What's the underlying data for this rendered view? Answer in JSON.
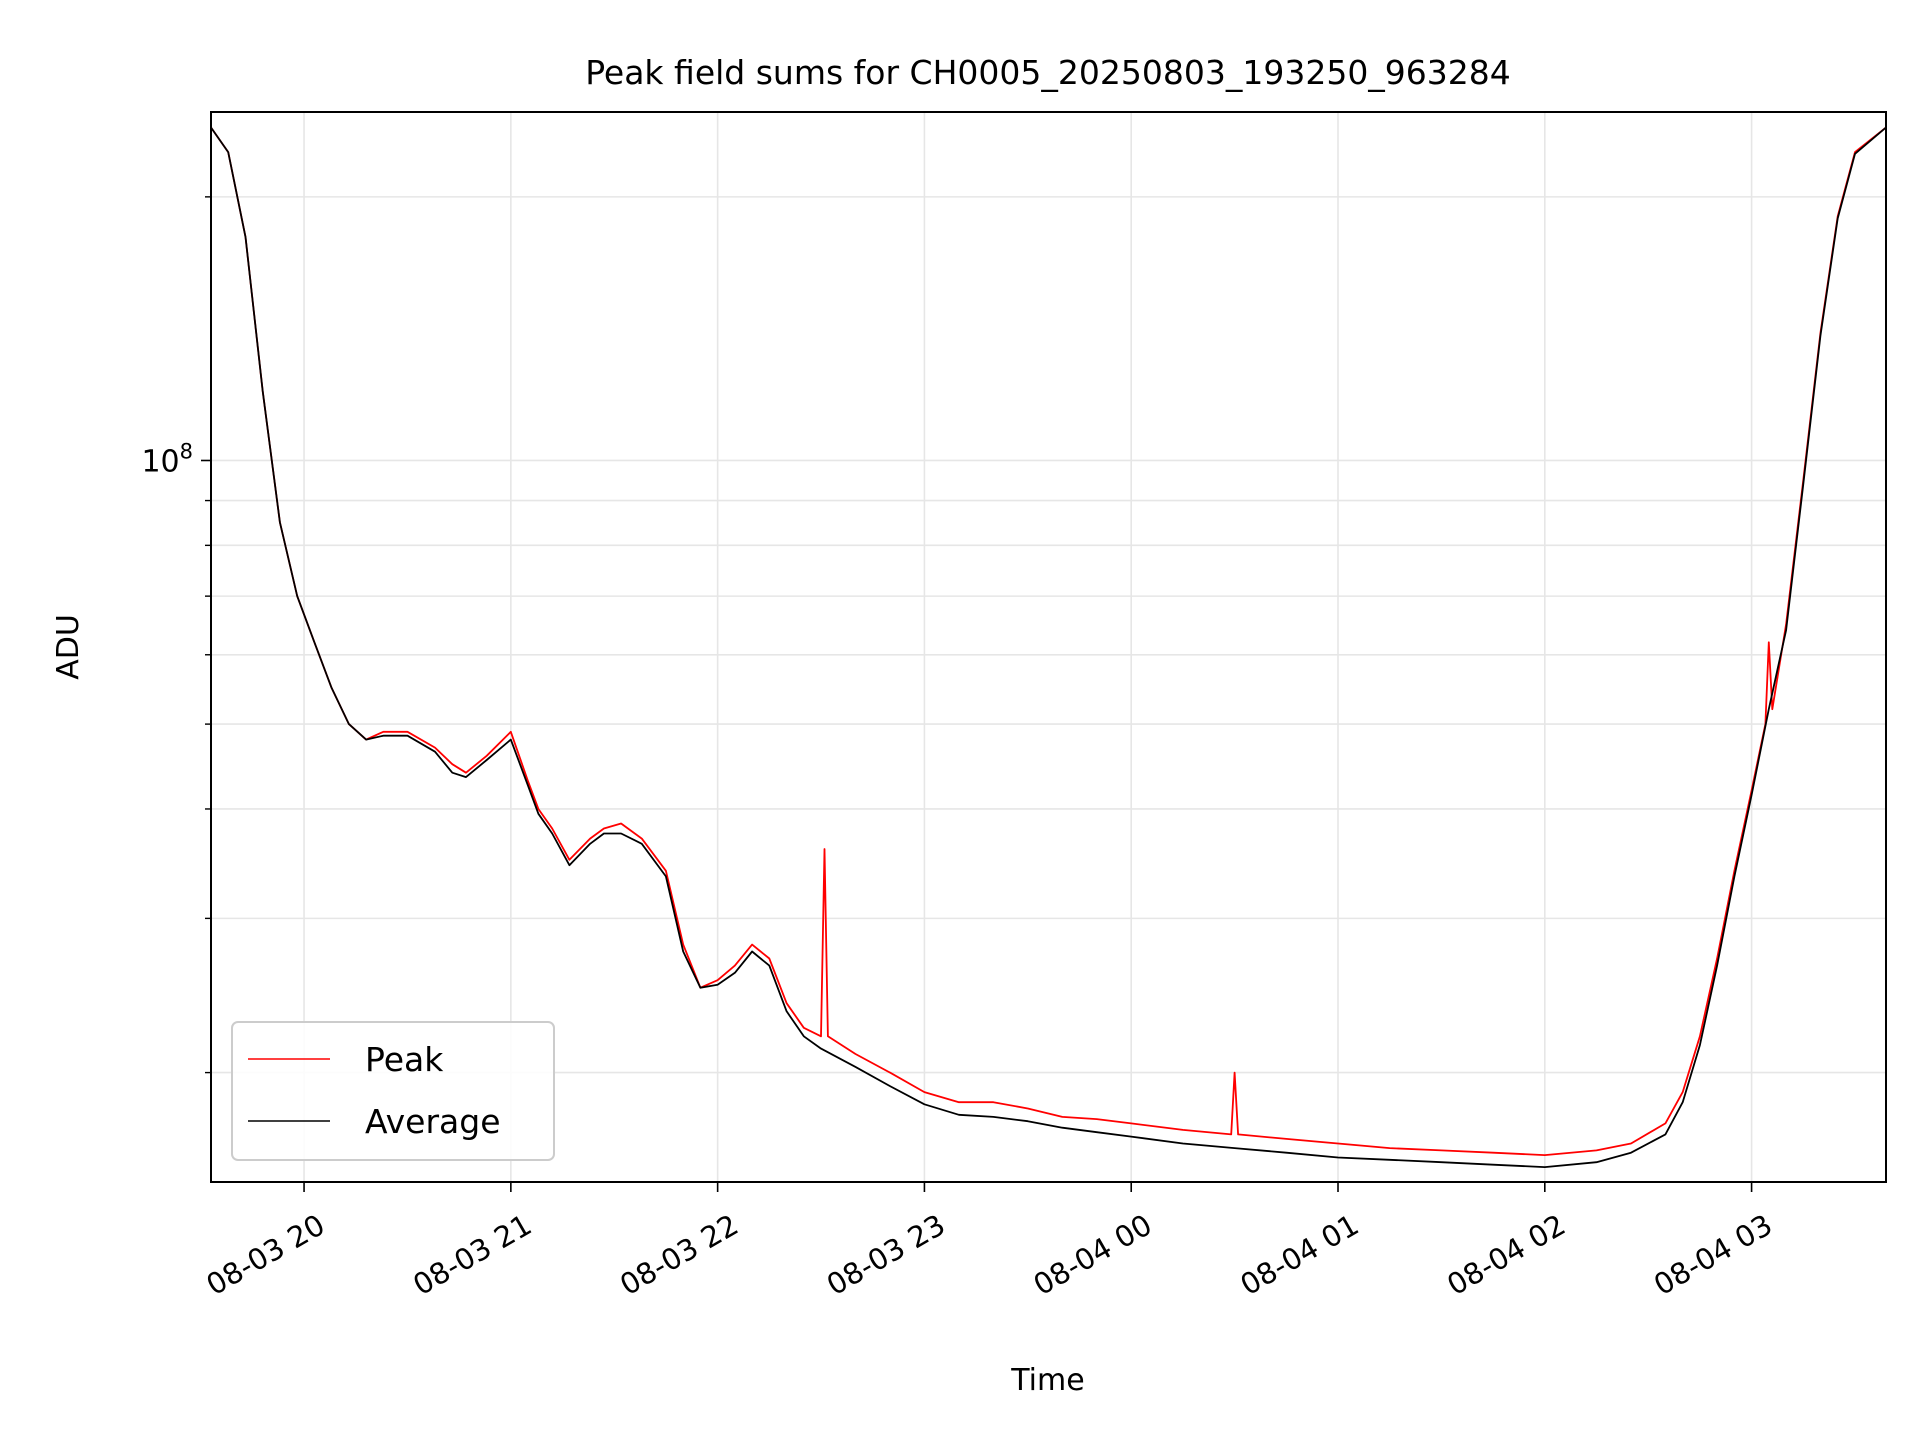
{
  "chart_data": {
    "type": "line",
    "title": "Peak field sums for CH0005_20250803_193250_963284",
    "xlabel": "Time",
    "ylabel": "ADU",
    "xlim": [
      "2025-08-03 19:33",
      "2025-08-04 03:39"
    ],
    "ylim": [
      15000000,
      250000000
    ],
    "yscale": "log",
    "grid": true,
    "legend_position": "lower-left",
    "x_ticks": [
      "08-03 20",
      "08-03 21",
      "08-03 22",
      "08-03 23",
      "08-04 00",
      "08-04 01",
      "08-04 02",
      "08-04 03"
    ],
    "x_tick_times": [
      "2025-08-03 20:00",
      "2025-08-03 21:00",
      "2025-08-03 22:00",
      "2025-08-03 23:00",
      "2025-08-04 00:00",
      "2025-08-04 01:00",
      "2025-08-04 02:00",
      "2025-08-04 03:00"
    ],
    "y_tick_labels": [
      {
        "value": 100000000,
        "base": "10",
        "exp": "8"
      }
    ],
    "y_minor_ticks": [
      20000000,
      30000000,
      40000000,
      50000000,
      60000000,
      70000000,
      80000000,
      90000000,
      200000000
    ],
    "series": [
      {
        "name": "Peak",
        "color": "#ff0000",
        "x": [
          "2025-08-03 19:33",
          "2025-08-03 19:38",
          "2025-08-03 19:43",
          "2025-08-03 19:48",
          "2025-08-03 19:53",
          "2025-08-03 19:58",
          "2025-08-03 20:03",
          "2025-08-03 20:08",
          "2025-08-03 20:13",
          "2025-08-03 20:18",
          "2025-08-03 20:23",
          "2025-08-03 20:30",
          "2025-08-03 20:38",
          "2025-08-03 20:43",
          "2025-08-03 20:47",
          "2025-08-03 20:53",
          "2025-08-03 21:00",
          "2025-08-03 21:05",
          "2025-08-03 21:08",
          "2025-08-03 21:12",
          "2025-08-03 21:17",
          "2025-08-03 21:23",
          "2025-08-03 21:27",
          "2025-08-03 21:32",
          "2025-08-03 21:38",
          "2025-08-03 21:45",
          "2025-08-03 21:50",
          "2025-08-03 21:55",
          "2025-08-03 22:00",
          "2025-08-03 22:05",
          "2025-08-03 22:10",
          "2025-08-03 22:15",
          "2025-08-03 22:20",
          "2025-08-03 22:25",
          "2025-08-03 22:30",
          "2025-08-03 22:31",
          "2025-08-03 22:32",
          "2025-08-03 22:40",
          "2025-08-03 22:50",
          "2025-08-03 23:00",
          "2025-08-03 23:10",
          "2025-08-03 23:20",
          "2025-08-03 23:30",
          "2025-08-03 23:40",
          "2025-08-03 23:50",
          "2025-08-04 00:00",
          "2025-08-04 00:15",
          "2025-08-04 00:29",
          "2025-08-04 00:30",
          "2025-08-04 00:31",
          "2025-08-04 00:45",
          "2025-08-04 01:00",
          "2025-08-04 01:15",
          "2025-08-04 01:30",
          "2025-08-04 01:45",
          "2025-08-04 02:00",
          "2025-08-04 02:15",
          "2025-08-04 02:25",
          "2025-08-04 02:35",
          "2025-08-04 02:40",
          "2025-08-04 02:45",
          "2025-08-04 02:50",
          "2025-08-04 02:55",
          "2025-08-04 03:00",
          "2025-08-04 03:04",
          "2025-08-04 03:05",
          "2025-08-04 03:06",
          "2025-08-04 03:10",
          "2025-08-04 03:15",
          "2025-08-04 03:20",
          "2025-08-04 03:25",
          "2025-08-04 03:30",
          "2025-08-04 03:39"
        ],
        "y": [
          240000000,
          225000000,
          180000000,
          120000000,
          85000000,
          70000000,
          62000000,
          55000000,
          50000000,
          48000000,
          49000000,
          49000000,
          47000000,
          45000000,
          44000000,
          46000000,
          49000000,
          43000000,
          40000000,
          38000000,
          35000000,
          37000000,
          38000000,
          38500000,
          37000000,
          34000000,
          28000000,
          25000000,
          25500000,
          26500000,
          28000000,
          27000000,
          24000000,
          22500000,
          22000000,
          36000000,
          22000000,
          21000000,
          20000000,
          19000000,
          18500000,
          18500000,
          18200000,
          17800000,
          17700000,
          17500000,
          17200000,
          17000000,
          20000000,
          17000000,
          16800000,
          16600000,
          16400000,
          16300000,
          16200000,
          16100000,
          16300000,
          16600000,
          17500000,
          19000000,
          22000000,
          27000000,
          34000000,
          42000000,
          50000000,
          62000000,
          52000000,
          65000000,
          95000000,
          140000000,
          190000000,
          225000000,
          240000000
        ]
      },
      {
        "name": "Average",
        "color": "#000000",
        "x": [
          "2025-08-03 19:33",
          "2025-08-03 19:38",
          "2025-08-03 19:43",
          "2025-08-03 19:48",
          "2025-08-03 19:53",
          "2025-08-03 19:58",
          "2025-08-03 20:03",
          "2025-08-03 20:08",
          "2025-08-03 20:13",
          "2025-08-03 20:18",
          "2025-08-03 20:23",
          "2025-08-03 20:30",
          "2025-08-03 20:38",
          "2025-08-03 20:43",
          "2025-08-03 20:47",
          "2025-08-03 20:53",
          "2025-08-03 21:00",
          "2025-08-03 21:05",
          "2025-08-03 21:08",
          "2025-08-03 21:12",
          "2025-08-03 21:17",
          "2025-08-03 21:23",
          "2025-08-03 21:27",
          "2025-08-03 21:32",
          "2025-08-03 21:38",
          "2025-08-03 21:45",
          "2025-08-03 21:50",
          "2025-08-03 21:55",
          "2025-08-03 22:00",
          "2025-08-03 22:05",
          "2025-08-03 22:10",
          "2025-08-03 22:15",
          "2025-08-03 22:20",
          "2025-08-03 22:25",
          "2025-08-03 22:30",
          "2025-08-03 22:40",
          "2025-08-03 22:50",
          "2025-08-03 23:00",
          "2025-08-03 23:10",
          "2025-08-03 23:20",
          "2025-08-03 23:30",
          "2025-08-03 23:40",
          "2025-08-03 23:50",
          "2025-08-04 00:00",
          "2025-08-04 00:15",
          "2025-08-04 00:30",
          "2025-08-04 00:45",
          "2025-08-04 01:00",
          "2025-08-04 01:15",
          "2025-08-04 01:30",
          "2025-08-04 01:45",
          "2025-08-04 02:00",
          "2025-08-04 02:15",
          "2025-08-04 02:25",
          "2025-08-04 02:35",
          "2025-08-04 02:40",
          "2025-08-04 02:45",
          "2025-08-04 02:50",
          "2025-08-04 02:55",
          "2025-08-04 03:00",
          "2025-08-04 03:05",
          "2025-08-04 03:10",
          "2025-08-04 03:15",
          "2025-08-04 03:20",
          "2025-08-04 03:25",
          "2025-08-04 03:30",
          "2025-08-04 03:39"
        ],
        "y": [
          240000000,
          225000000,
          180000000,
          120000000,
          85000000,
          70000000,
          62000000,
          55000000,
          50000000,
          48000000,
          48500000,
          48500000,
          46500000,
          44000000,
          43500000,
          45500000,
          48000000,
          42500000,
          39500000,
          37500000,
          34500000,
          36500000,
          37500000,
          37500000,
          36500000,
          33500000,
          27500000,
          25000000,
          25200000,
          26000000,
          27500000,
          26500000,
          23500000,
          22000000,
          21300000,
          20300000,
          19300000,
          18400000,
          17900000,
          17800000,
          17600000,
          17300000,
          17100000,
          16900000,
          16600000,
          16400000,
          16200000,
          16000000,
          15900000,
          15800000,
          15700000,
          15600000,
          15800000,
          16200000,
          17000000,
          18500000,
          21500000,
          26500000,
          33500000,
          41500000,
          52000000,
          64000000,
          94000000,
          139000000,
          189000000,
          224000000,
          240000000
        ]
      }
    ]
  }
}
